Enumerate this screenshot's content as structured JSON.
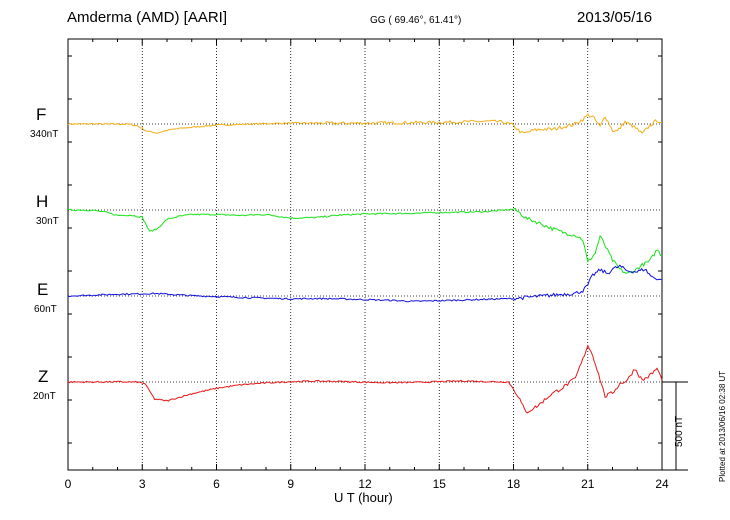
{
  "header": {
    "title": "Amderma (AMD)  [AARI]",
    "coords": "GG ( 69.46°,  61.41°)",
    "date": "2013/05/16"
  },
  "footer": {
    "plotted": "Plotted at 2013/06/16 02:38 UT",
    "scale_bar": "500 nT"
  },
  "colors": {
    "F": "#f5ad14",
    "H": "#18e218",
    "E": "#1010dd",
    "Z": "#e81818"
  },
  "chart_data": {
    "type": "line",
    "title": "Amderma (AMD)  [AARI]",
    "xlabel": "U T (hour)",
    "ylabel": "",
    "xlim": [
      0,
      24
    ],
    "x_ticks": [
      "0",
      "3",
      "6",
      "9",
      "12",
      "15",
      "18",
      "21",
      "24"
    ],
    "grid": true,
    "scale_bar_nT": 500,
    "series": [
      {
        "name": "F",
        "scale": "340nT",
        "baseline_nT": 340,
        "x": [
          0,
          0.5,
          1,
          1.5,
          2,
          2.5,
          2.8,
          3.2,
          3.6,
          4,
          4.5,
          5,
          5.5,
          6,
          7,
          8,
          9,
          10,
          11,
          12,
          13,
          14,
          15,
          16,
          17,
          17.5,
          18,
          18.2,
          18.4,
          18.8,
          19.2,
          19.6,
          20,
          20.4,
          20.8,
          21,
          21.2,
          21.5,
          21.7,
          22,
          22.2,
          22.5,
          22.8,
          23,
          23.2,
          23.5,
          23.8,
          24
        ],
        "values": [
          340,
          340,
          341,
          339,
          340,
          338,
          330,
          300,
          290,
          305,
          315,
          322,
          328,
          334,
          338,
          342,
          345,
          345,
          344,
          345,
          346,
          348,
          349,
          352,
          355,
          352,
          334,
          305,
          285,
          305,
          312,
          310,
          325,
          335,
          365,
          390,
          380,
          325,
          385,
          305,
          300,
          352,
          330,
          310,
          285,
          330,
          360,
          350
        ]
      },
      {
        "name": "H",
        "scale": "30nT",
        "baseline_nT": 30,
        "x": [
          0,
          0.5,
          1,
          1.5,
          2,
          2.5,
          3,
          3.3,
          3.6,
          4,
          4.5,
          5,
          6,
          7,
          8,
          9,
          10,
          11,
          12,
          13,
          14,
          15,
          16,
          17,
          17.5,
          18,
          18.2,
          18.5,
          19,
          19.5,
          20,
          20.5,
          20.8,
          21,
          21.3,
          21.5,
          21.8,
          22,
          22.3,
          22.6,
          22.9,
          23.2,
          23.5,
          23.8,
          24
        ],
        "values": [
          30,
          30,
          28,
          18,
          0,
          2,
          -10,
          -90,
          -75,
          -22,
          -5,
          5,
          5,
          0,
          5,
          -15,
          -12,
          2,
          8,
          10,
          12,
          16,
          18,
          22,
          28,
          35,
          20,
          -15,
          -40,
          -70,
          -95,
          -110,
          -135,
          -260,
          -210,
          -115,
          -195,
          -250,
          -300,
          -325,
          -305,
          -275,
          -255,
          -190,
          -225
        ]
      },
      {
        "name": "E",
        "scale": "60nT",
        "baseline_nT": 60,
        "x": [
          0,
          1,
          2,
          3,
          3.5,
          4,
          5,
          6,
          7,
          8,
          9,
          10,
          11,
          12,
          13,
          14,
          15,
          16,
          17,
          18,
          18.5,
          19,
          19.5,
          20,
          20.5,
          20.8,
          21,
          21.2,
          21.5,
          21.8,
          22,
          22.3,
          22.6,
          23,
          23.3,
          23.6,
          24
        ],
        "values": [
          60,
          65,
          70,
          72,
          74,
          70,
          62,
          57,
          52,
          48,
          44,
          46,
          44,
          40,
          36,
          30,
          34,
          38,
          42,
          46,
          52,
          58,
          64,
          70,
          75,
          90,
          120,
          175,
          205,
          185,
          210,
          225,
          200,
          195,
          210,
          165,
          150
        ]
      },
      {
        "name": "Z",
        "scale": "20nT",
        "baseline_nT": 20,
        "x": [
          0,
          1,
          2,
          2.8,
          3.1,
          3.5,
          4,
          5,
          6,
          7,
          8,
          9,
          10,
          11,
          12,
          13,
          14,
          15,
          16,
          17,
          17.8,
          18.2,
          18.5,
          19,
          19.5,
          20,
          20.5,
          20.8,
          21,
          21.2,
          21.5,
          21.7,
          22,
          22.3,
          22.6,
          22.9,
          23.2,
          23.5,
          23.8,
          24
        ],
        "values": [
          20,
          20,
          21,
          19,
          12,
          -75,
          -85,
          -45,
          -15,
          5,
          15,
          22,
          25,
          23,
          19,
          16,
          18,
          22,
          26,
          22,
          20,
          -60,
          -150,
          -110,
          -50,
          -10,
          40,
          145,
          225,
          170,
          35,
          -60,
          -40,
          10,
          30,
          95,
          30,
          55,
          95,
          30
        ]
      }
    ]
  }
}
